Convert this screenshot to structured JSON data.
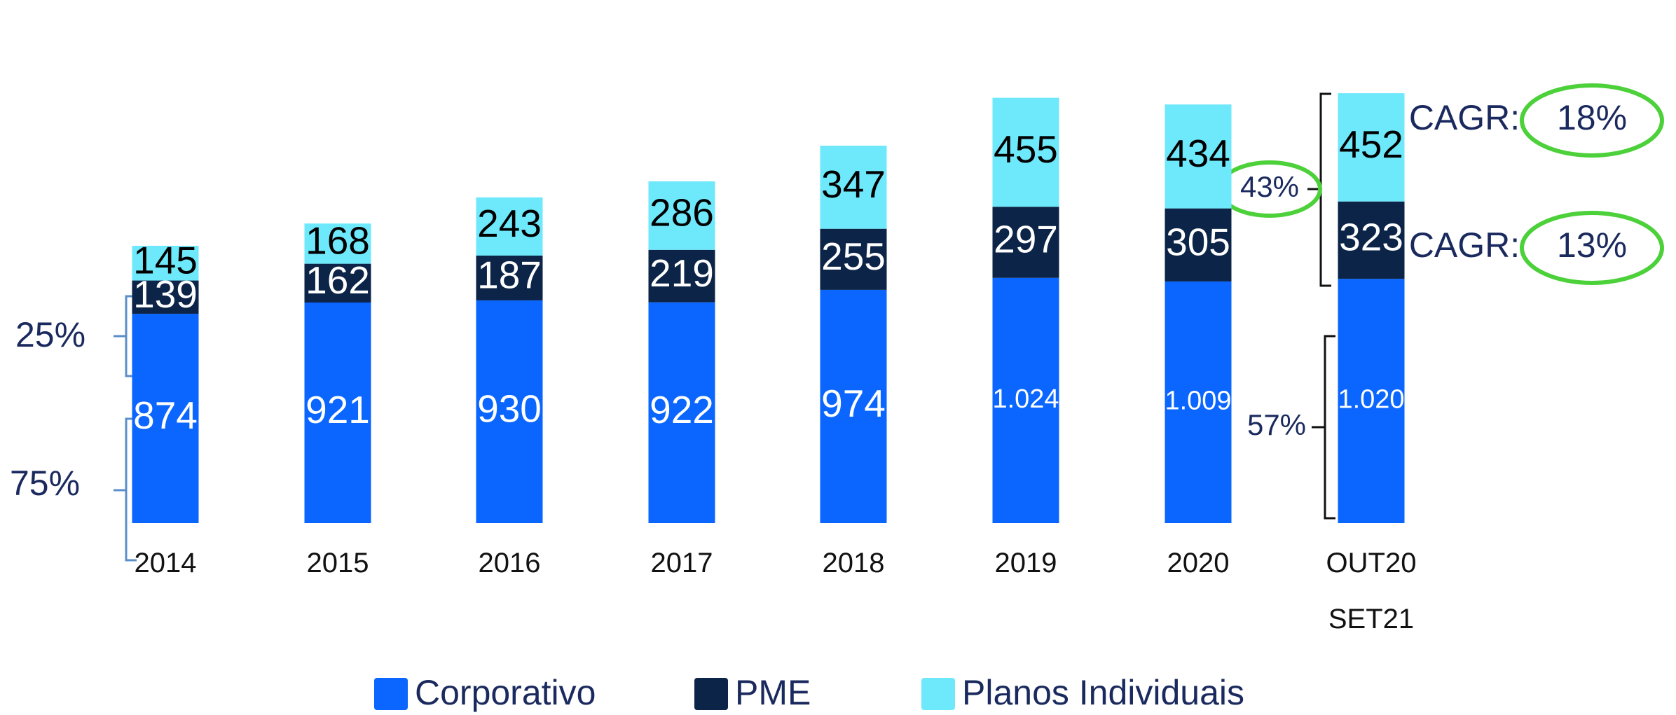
{
  "chart_data": {
    "type": "stacked-bar",
    "categories": [
      "2014",
      "2015",
      "2016",
      "2017",
      "2018",
      "2019",
      "2020",
      "OUT20\nSET21"
    ],
    "series": [
      {
        "name": "Corporativo",
        "color": "#0a66ff",
        "values": [
          874,
          921,
          930,
          922,
          974,
          1024,
          1009,
          1020
        ],
        "value_labels": [
          "874",
          "921",
          "930",
          "922",
          "974",
          "1.024",
          "1.009",
          "1.020"
        ]
      },
      {
        "name": "PME",
        "color": "#0b2447",
        "values": [
          139,
          162,
          187,
          219,
          255,
          297,
          305,
          323
        ]
      },
      {
        "name": "Planos Individuais",
        "color": "#6ee8fb",
        "values": [
          145,
          168,
          243,
          286,
          347,
          455,
          434,
          452
        ]
      }
    ],
    "annotations": [
      "25%",
      "75%",
      "43%",
      "57%",
      "CAGR:",
      "18%",
      "CAGR:",
      "13%"
    ]
  }
}
